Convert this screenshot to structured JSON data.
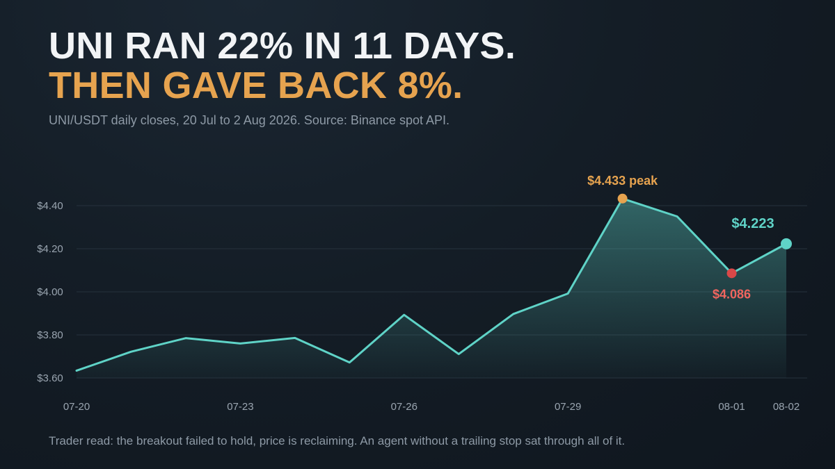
{
  "headline": {
    "line1": "UNI RAN 22% IN 11 DAYS.",
    "line2": "THEN GAVE BACK 8%."
  },
  "subtitle": "UNI/USDT daily closes, 20 Jul to 2 Aug 2026. Source: Binance spot API.",
  "footnote": "Trader read: the breakout failed to hold, price is reclaiming. An agent without a trailing stop sat through all of it.",
  "colors": {
    "line": "#5fd3c7",
    "peak": "#e6a34f",
    "low": "#d94848",
    "low_label": "#f0655f",
    "grid": "#26323d",
    "tick": "#9aa5b0"
  },
  "chart_data": {
    "type": "line",
    "x": [
      "07-20",
      "07-21",
      "07-22",
      "07-23",
      "07-24",
      "07-25",
      "07-26",
      "07-27",
      "07-28",
      "07-29",
      "07-30",
      "07-31",
      "08-01",
      "08-02"
    ],
    "values": [
      3.634,
      3.722,
      3.785,
      3.76,
      3.786,
      3.672,
      3.893,
      3.711,
      3.897,
      3.992,
      4.433,
      4.35,
      4.086,
      4.223
    ],
    "x_tick_labels": [
      "07-20",
      "07-23",
      "07-26",
      "07-29",
      "08-01",
      "08-02"
    ],
    "y_ticks": [
      3.6,
      3.8,
      4.0,
      4.2,
      4.4
    ],
    "y_tick_labels": [
      "$3.60",
      "$3.80",
      "$4.00",
      "$4.20",
      "$4.40"
    ],
    "ylim": [
      3.6,
      4.46
    ],
    "grid": true,
    "area_fill": true,
    "annotations": {
      "peak": {
        "index": 10,
        "text": "$4.433 peak"
      },
      "low": {
        "index": 12,
        "text": "$4.086"
      },
      "last": {
        "index": 13,
        "text": "$4.223"
      }
    }
  }
}
